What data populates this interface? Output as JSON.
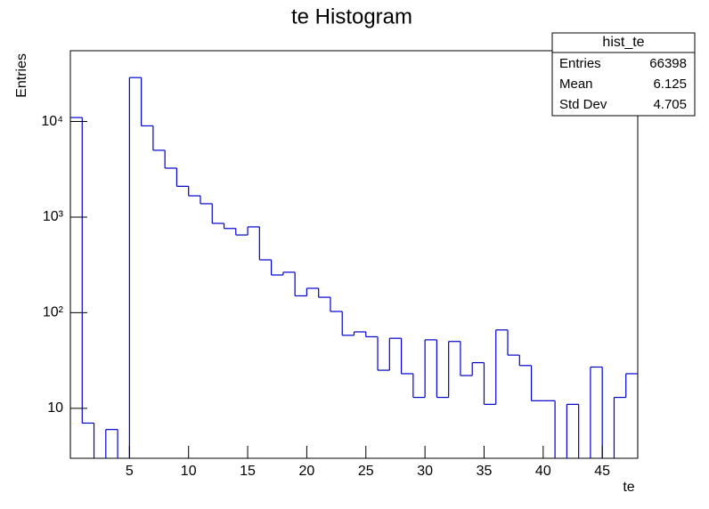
{
  "chart_data": {
    "type": "histogram",
    "title": "te Histogram",
    "x_label": "te",
    "y_label": "Entries",
    "bins": [
      0,
      1,
      2,
      3,
      4,
      5,
      6,
      7,
      8,
      9,
      10,
      11,
      12,
      13,
      14,
      15,
      16,
      17,
      18,
      19,
      20,
      21,
      22,
      23,
      24,
      25,
      26,
      27,
      28,
      29,
      30,
      31,
      32,
      33,
      34,
      35,
      36,
      37,
      38,
      39,
      40,
      41,
      42,
      43,
      44,
      45,
      46,
      47,
      48
    ],
    "values": [
      11000,
      7,
      0,
      6,
      0,
      28800,
      9000,
      5000,
      3250,
      2100,
      1670,
      1380,
      860,
      760,
      650,
      790,
      357,
      248,
      265,
      150,
      180,
      145,
      103,
      58,
      63,
      56,
      25,
      54,
      23,
      13,
      52,
      13,
      50,
      22,
      30,
      11,
      66,
      36,
      28,
      12,
      12,
      0,
      11,
      0,
      27,
      0,
      13,
      23
    ],
    "color": "#0000cc",
    "xlim": [
      0,
      48
    ],
    "xticks": [
      5,
      10,
      15,
      20,
      25,
      30,
      35,
      40,
      45
    ],
    "ylim": [
      3,
      55000
    ],
    "log_y": true,
    "yticks": [
      10,
      {
        "value": 100,
        "label": "10²"
      },
      {
        "value": 1000,
        "label": "10³"
      },
      {
        "value": 10000,
        "label": "10⁴"
      }
    ],
    "stats": {
      "name": "hist_te",
      "rows": [
        [
          "Entries",
          "66398"
        ],
        [
          "Mean",
          "6.125"
        ],
        [
          "Std Dev",
          "4.705"
        ]
      ]
    }
  }
}
